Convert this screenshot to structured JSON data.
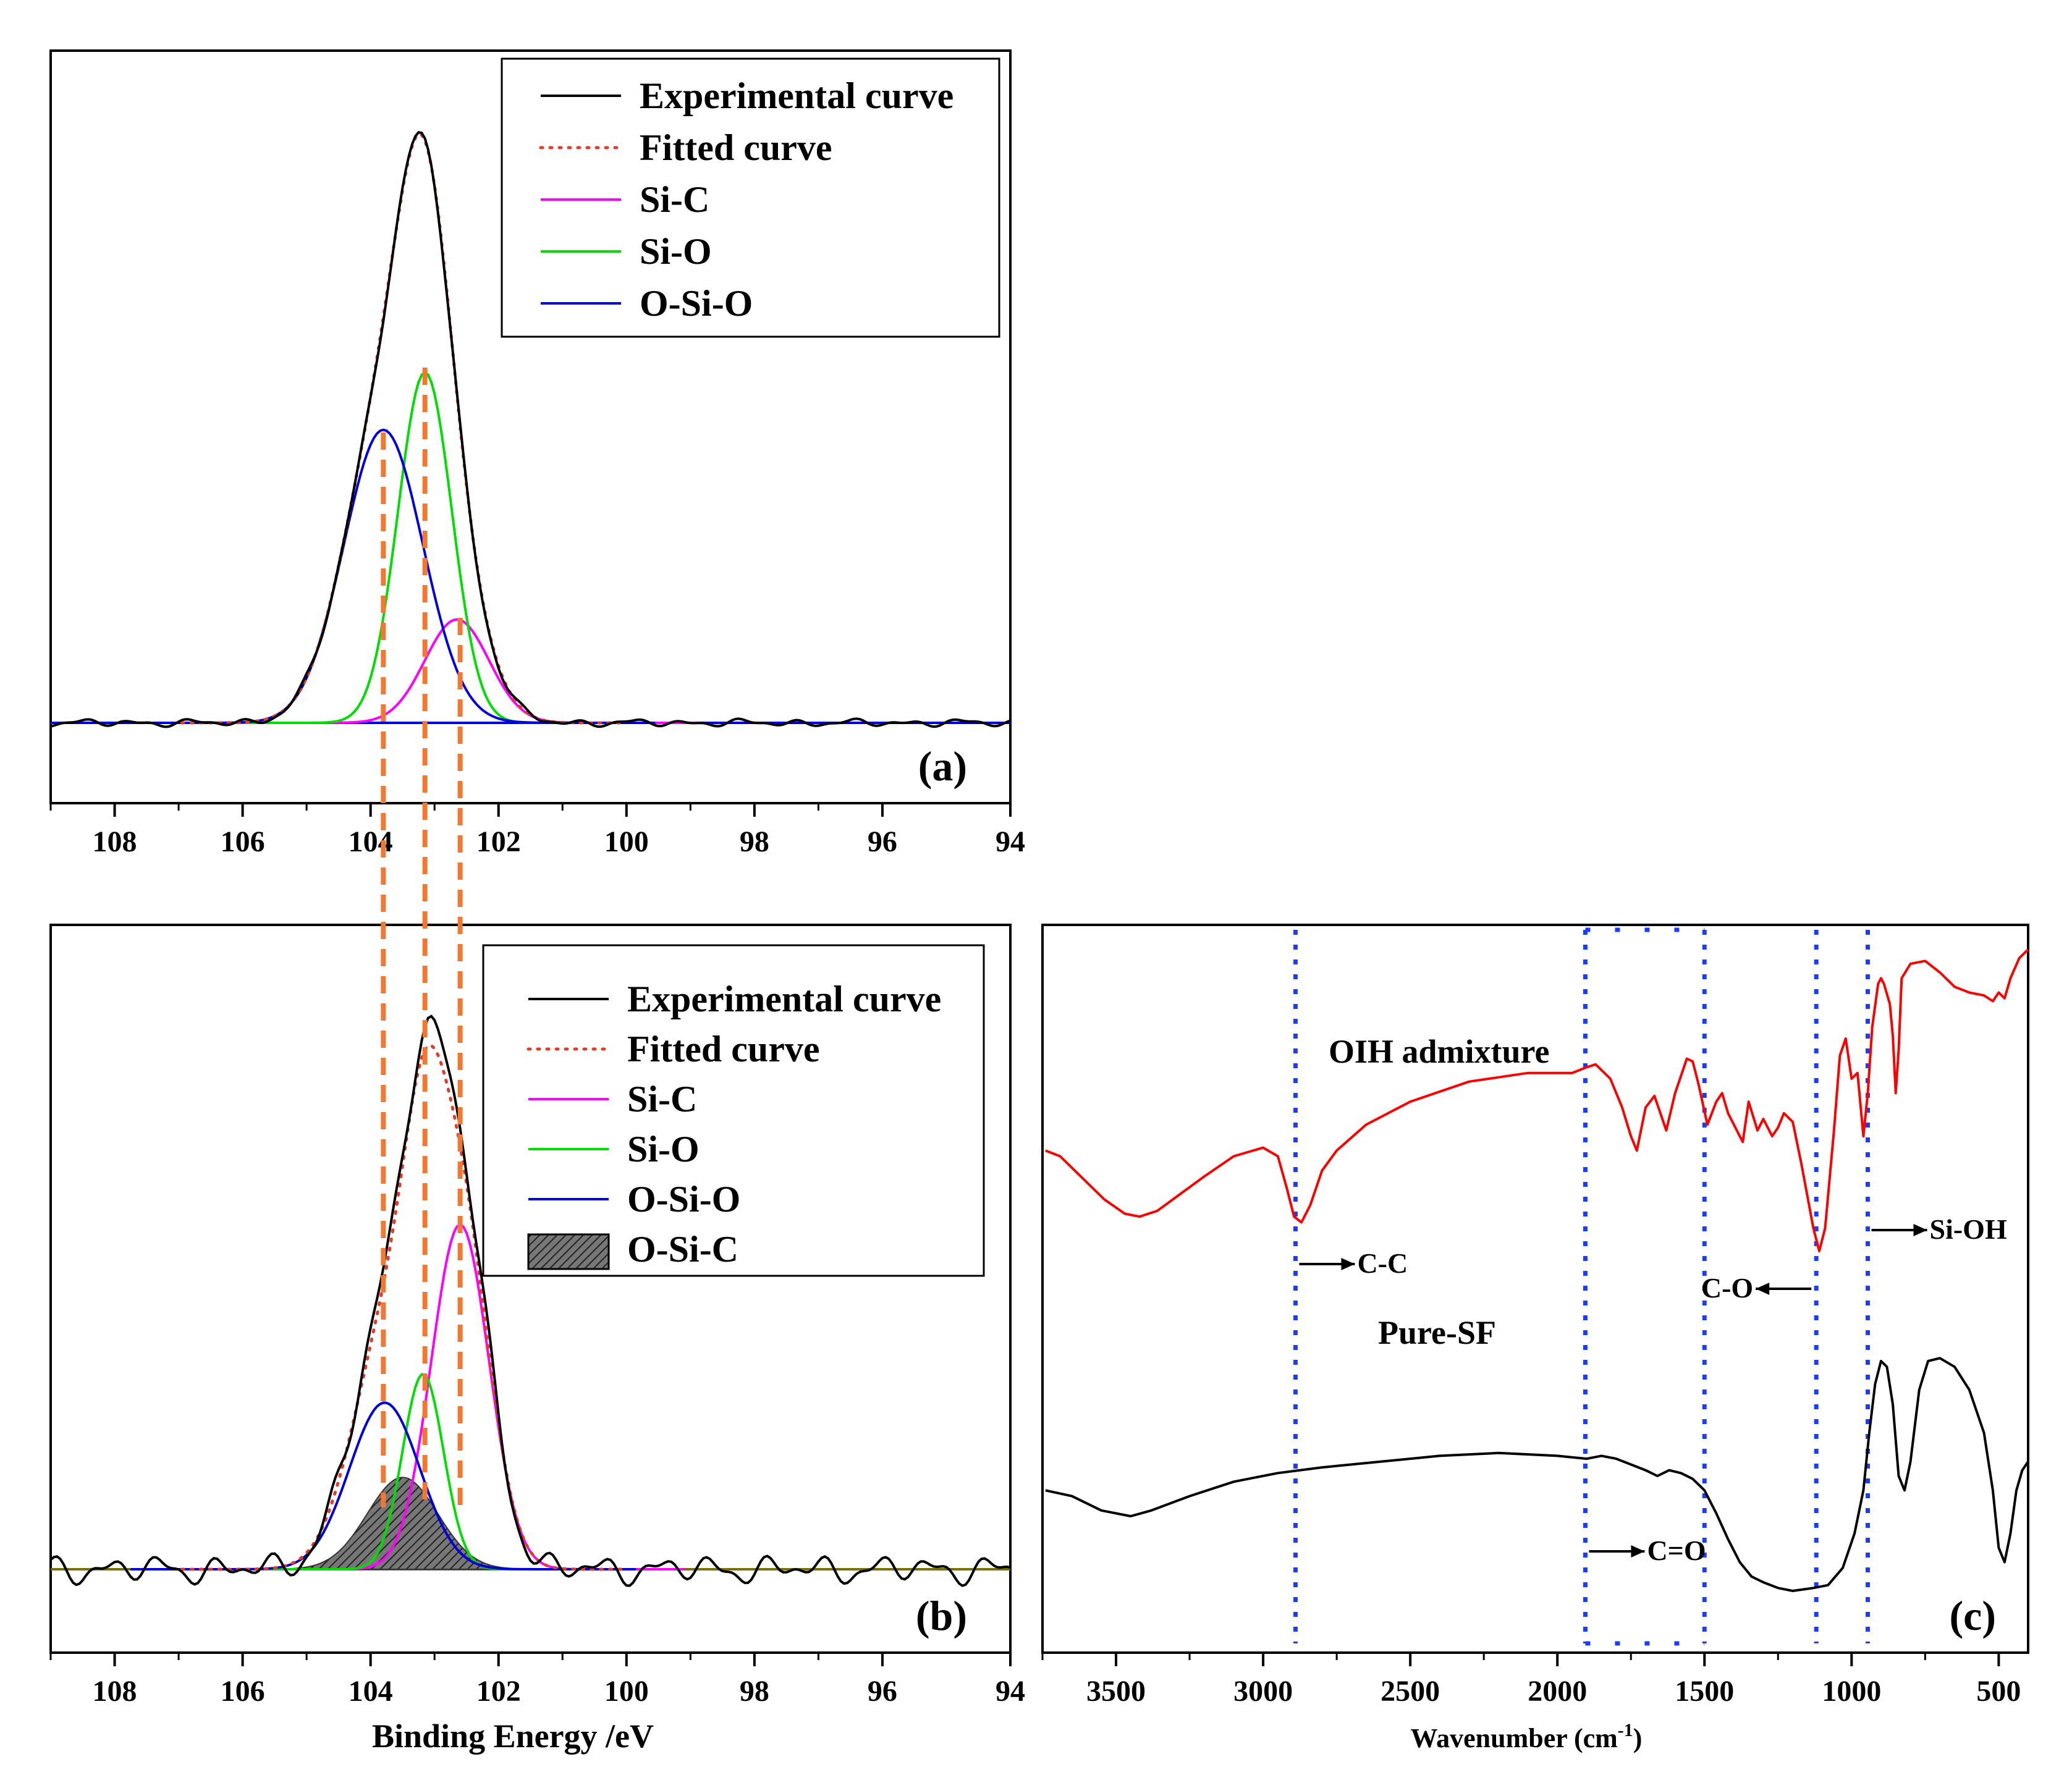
{
  "figure": {
    "colors": {
      "experimental": "#000000",
      "fitted": "#e23b2a",
      "si_c": "#ff00ff",
      "si_o": "#00dd00",
      "o_si_o": "#0000dd",
      "guide": "#f07830",
      "ir_guide": "#1a3cff",
      "oih": "#ff0000",
      "pure": "#000000",
      "baseline_b": "#7a7000"
    }
  },
  "chart_data": [
    {
      "id": "a",
      "type": "line",
      "panel_label": "(a)",
      "xlabel": "",
      "xlim": [
        109,
        94
      ],
      "xreversed": true,
      "xticks": [
        "108",
        "106",
        "104",
        "102",
        "100",
        "98",
        "96",
        "94"
      ],
      "ylim": [
        -0.15,
        1.12
      ],
      "yticks": [],
      "legend_position": "top-right",
      "legend": [
        "Experimental curve",
        "Fitted curve",
        "Si-C",
        "Si-O",
        "O-Si-O"
      ],
      "peaks": [
        {
          "name": "Si-C",
          "center": 102.65,
          "height": 0.18,
          "width": 0.5
        },
        {
          "name": "Si-O",
          "center": 103.15,
          "height": 0.61,
          "width": 0.42
        },
        {
          "name": "O-Si-O",
          "center": 103.8,
          "height": 0.51,
          "width": 0.62
        }
      ],
      "guide_lines": [
        103.8,
        103.15,
        102.6
      ]
    },
    {
      "id": "b",
      "type": "line",
      "panel_label": "(b)",
      "xlabel": "Binding Energy /eV",
      "xlim": [
        109,
        94
      ],
      "xreversed": true,
      "xticks": [
        "108",
        "106",
        "104",
        "102",
        "100",
        "98",
        "96",
        "94"
      ],
      "ylim": [
        -0.15,
        1.12
      ],
      "yticks": [],
      "legend_position": "top-right",
      "legend": [
        "Experimental curve",
        "Fitted curve",
        "Si-C",
        "Si-O",
        "O-Si-O",
        "O-Si-C"
      ],
      "peaks": [
        {
          "name": "Si-C",
          "center": 102.6,
          "height": 0.6,
          "width": 0.45
        },
        {
          "name": "Si-O",
          "center": 103.18,
          "height": 0.34,
          "width": 0.32
        },
        {
          "name": "O-Si-O",
          "center": 103.78,
          "height": 0.29,
          "width": 0.55
        },
        {
          "name": "O-Si-C",
          "center": 103.5,
          "height": 0.16,
          "width": 0.55
        }
      ]
    },
    {
      "id": "c",
      "type": "line",
      "panel_label": "(c)",
      "xlabel": "Wavenumber (cm",
      "xlabel_sup": "-1",
      "xlabel_tail": ")",
      "xlim": [
        3750,
        400
      ],
      "xreversed": true,
      "xticks": [
        "3500",
        "3000",
        "2500",
        "2000",
        "1500",
        "1000",
        "500"
      ],
      "yticks": [],
      "series": [
        {
          "name": "OIH admixture",
          "color": "#ff0000",
          "points": [
            [
              3740,
              0.35
            ],
            [
              3690,
              0.33
            ],
            [
              3620,
              0.26
            ],
            [
              3540,
              0.18
            ],
            [
              3470,
              0.13
            ],
            [
              3420,
              0.12
            ],
            [
              3360,
              0.14
            ],
            [
              3280,
              0.2
            ],
            [
              3200,
              0.26
            ],
            [
              3100,
              0.33
            ],
            [
              3000,
              0.36
            ],
            [
              2950,
              0.33
            ],
            [
              2920,
              0.22
            ],
            [
              2895,
              0.12
            ],
            [
              2870,
              0.1
            ],
            [
              2840,
              0.16
            ],
            [
              2800,
              0.28
            ],
            [
              2750,
              0.35
            ],
            [
              2650,
              0.44
            ],
            [
              2500,
              0.52
            ],
            [
              2300,
              0.59
            ],
            [
              2100,
              0.62
            ],
            [
              1950,
              0.62
            ],
            [
              1900,
              0.64
            ],
            [
              1870,
              0.65
            ],
            [
              1820,
              0.6
            ],
            [
              1780,
              0.5
            ],
            [
              1750,
              0.4
            ],
            [
              1730,
              0.35
            ],
            [
              1700,
              0.5
            ],
            [
              1670,
              0.54
            ],
            [
              1650,
              0.48
            ],
            [
              1630,
              0.42
            ],
            [
              1600,
              0.55
            ],
            [
              1560,
              0.67
            ],
            [
              1540,
              0.66
            ],
            [
              1520,
              0.58
            ],
            [
              1490,
              0.44
            ],
            [
              1460,
              0.52
            ],
            [
              1440,
              0.55
            ],
            [
              1420,
              0.48
            ],
            [
              1390,
              0.42
            ],
            [
              1370,
              0.38
            ],
            [
              1350,
              0.52
            ],
            [
              1320,
              0.42
            ],
            [
              1300,
              0.46
            ],
            [
              1270,
              0.4
            ],
            [
              1250,
              0.43
            ],
            [
              1230,
              0.48
            ],
            [
              1200,
              0.45
            ],
            [
              1170,
              0.3
            ],
            [
              1130,
              0.08
            ],
            [
              1110,
              0.0
            ],
            [
              1090,
              0.08
            ],
            [
              1060,
              0.42
            ],
            [
              1040,
              0.68
            ],
            [
              1020,
              0.74
            ],
            [
              1000,
              0.6
            ],
            [
              980,
              0.62
            ],
            [
              960,
              0.4
            ],
            [
              945,
              0.55
            ],
            [
              930,
              0.78
            ],
            [
              910,
              0.93
            ],
            [
              900,
              0.95
            ],
            [
              890,
              0.93
            ],
            [
              870,
              0.86
            ],
            [
              860,
              0.75
            ],
            [
              850,
              0.55
            ],
            [
              840,
              0.7
            ],
            [
              830,
              0.95
            ],
            [
              800,
              1.0
            ],
            [
              750,
              1.01
            ],
            [
              700,
              0.97
            ],
            [
              650,
              0.92
            ],
            [
              600,
              0.9
            ],
            [
              550,
              0.89
            ],
            [
              520,
              0.87
            ],
            [
              500,
              0.9
            ],
            [
              480,
              0.88
            ],
            [
              460,
              0.95
            ],
            [
              430,
              1.02
            ],
            [
              400,
              1.05
            ]
          ]
        },
        {
          "name": "Pure-SF",
          "color": "#000000",
          "points": [
            [
              3740,
              0.35
            ],
            [
              3650,
              0.33
            ],
            [
              3550,
              0.28
            ],
            [
              3450,
              0.26
            ],
            [
              3380,
              0.28
            ],
            [
              3250,
              0.33
            ],
            [
              3100,
              0.38
            ],
            [
              2950,
              0.41
            ],
            [
              2800,
              0.43
            ],
            [
              2600,
              0.45
            ],
            [
              2400,
              0.47
            ],
            [
              2200,
              0.48
            ],
            [
              2000,
              0.47
            ],
            [
              1900,
              0.46
            ],
            [
              1850,
              0.47
            ],
            [
              1800,
              0.46
            ],
            [
              1750,
              0.44
            ],
            [
              1700,
              0.42
            ],
            [
              1660,
              0.4
            ],
            [
              1620,
              0.42
            ],
            [
              1580,
              0.41
            ],
            [
              1540,
              0.39
            ],
            [
              1500,
              0.35
            ],
            [
              1460,
              0.27
            ],
            [
              1420,
              0.18
            ],
            [
              1380,
              0.1
            ],
            [
              1340,
              0.05
            ],
            [
              1300,
              0.03
            ],
            [
              1250,
              0.01
            ],
            [
              1200,
              0.0
            ],
            [
              1130,
              0.01
            ],
            [
              1080,
              0.02
            ],
            [
              1030,
              0.08
            ],
            [
              990,
              0.2
            ],
            [
              960,
              0.35
            ],
            [
              940,
              0.55
            ],
            [
              920,
              0.72
            ],
            [
              900,
              0.8
            ],
            [
              880,
              0.78
            ],
            [
              860,
              0.65
            ],
            [
              840,
              0.4
            ],
            [
              820,
              0.35
            ],
            [
              800,
              0.45
            ],
            [
              770,
              0.7
            ],
            [
              740,
              0.8
            ],
            [
              700,
              0.81
            ],
            [
              650,
              0.78
            ],
            [
              600,
              0.7
            ],
            [
              550,
              0.55
            ],
            [
              520,
              0.35
            ],
            [
              500,
              0.15
            ],
            [
              480,
              0.1
            ],
            [
              460,
              0.2
            ],
            [
              440,
              0.35
            ],
            [
              420,
              0.42
            ],
            [
              400,
              0.45
            ]
          ]
        }
      ],
      "guide_lines": [
        2890,
        1905,
        1500,
        1120,
        945
      ],
      "annotations": [
        {
          "text": "C-C",
          "x": 2850,
          "arrow": "right"
        },
        {
          "text": "C=O",
          "x": 1880,
          "arrow": "right"
        },
        {
          "text": "C-O",
          "x": 1130,
          "arrow": "left"
        },
        {
          "text": "Si-OH",
          "x": 930,
          "arrow": "right"
        }
      ],
      "labels": {
        "oih": "OIH admixture",
        "pure": "Pure-SF"
      }
    }
  ]
}
